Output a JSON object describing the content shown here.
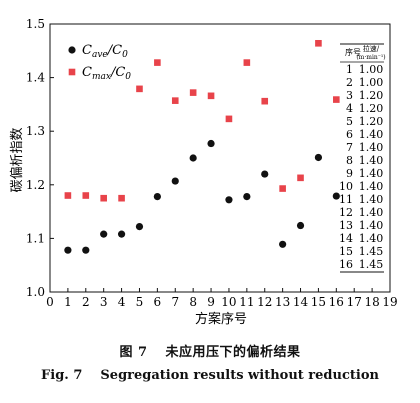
{
  "chart_data": {
    "type": "scatter",
    "xlabel": "方案序号",
    "ylabel": "碳偏析指数",
    "xlim": [
      0,
      19
    ],
    "ylim": [
      1.0,
      1.5
    ],
    "xticks": [
      "0",
      "1",
      "2",
      "3",
      "4",
      "5",
      "6",
      "7",
      "8",
      "9",
      "10",
      "11",
      "12",
      "13",
      "14",
      "15",
      "16",
      "17",
      "18",
      "19"
    ],
    "yticks": [
      "1.0",
      "1.1",
      "1.2",
      "1.3",
      "1.4",
      "1.5"
    ],
    "grid": false,
    "legend_position": "top-left",
    "series": [
      {
        "name": "Cave/C0",
        "label_main": "C",
        "label_sub": "ave",
        "label_tail": "/C",
        "label_tail_sub": "0",
        "marker": "circle",
        "color": "#111111",
        "x": [
          1,
          2,
          3,
          4,
          5,
          6,
          7,
          8,
          9,
          10,
          11,
          12,
          13,
          14,
          15,
          16
        ],
        "values": [
          1.078,
          1.078,
          1.108,
          1.108,
          1.122,
          1.178,
          1.207,
          1.25,
          1.277,
          1.172,
          1.178,
          1.22,
          1.089,
          1.124,
          1.251,
          1.179
        ]
      },
      {
        "name": "Cmax/C0",
        "label_main": "C",
        "label_sub": "max",
        "label_tail": "/C",
        "label_tail_sub": "0",
        "marker": "square",
        "color": "#e8434a",
        "x": [
          1,
          2,
          3,
          4,
          5,
          6,
          7,
          8,
          9,
          10,
          11,
          12,
          13,
          14,
          15,
          16
        ],
        "values": [
          1.18,
          1.18,
          1.175,
          1.175,
          1.379,
          1.428,
          1.357,
          1.372,
          1.366,
          1.323,
          1.428,
          1.356,
          1.193,
          1.213,
          1.464,
          1.359
        ]
      }
    ],
    "inset_table": {
      "header_col1": "序号",
      "header_col2_line1": "拉速/",
      "header_col2_line2": "(m·min⁻¹)",
      "rows": [
        [
          "1",
          "1.00"
        ],
        [
          "2",
          "1.00"
        ],
        [
          "3",
          "1.20"
        ],
        [
          "4",
          "1.20"
        ],
        [
          "5",
          "1.20"
        ],
        [
          "6",
          "1.40"
        ],
        [
          "7",
          "1.40"
        ],
        [
          "8",
          "1.40"
        ],
        [
          "9",
          "1.40"
        ],
        [
          "10",
          "1.40"
        ],
        [
          "11",
          "1.40"
        ],
        [
          "12",
          "1.40"
        ],
        [
          "13",
          "1.40"
        ],
        [
          "14",
          "1.40"
        ],
        [
          "15",
          "1.45"
        ],
        [
          "16",
          "1.45"
        ]
      ]
    }
  },
  "caption": {
    "cn_fig": "图 7",
    "cn_text": "未应用压下的偏析结果",
    "en_fig": "Fig. 7",
    "en_text": "Segregation results without reduction"
  }
}
